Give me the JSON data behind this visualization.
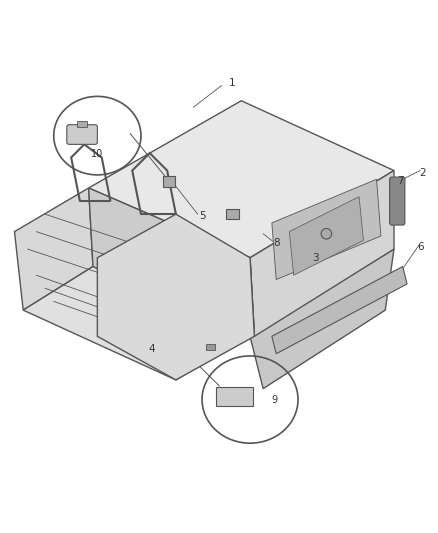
{
  "bg_color": "#ffffff",
  "line_color": "#555555",
  "label_color": "#333333",
  "figsize": [
    4.39,
    5.33
  ],
  "dpi": 100
}
